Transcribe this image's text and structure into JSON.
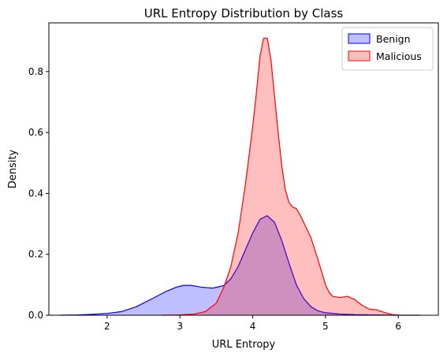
{
  "chart_data": {
    "type": "area",
    "title": "URL Entropy Distribution by Class",
    "xlabel": "URL Entropy",
    "ylabel": "Density",
    "xlim": [
      1.2,
      6.55
    ],
    "ylim": [
      0,
      0.96
    ],
    "x_ticks": [
      2,
      3,
      4,
      5,
      6
    ],
    "y_ticks": [
      0.0,
      0.2,
      0.4,
      0.6,
      0.8
    ],
    "grid": false,
    "legend_position": "top-right",
    "series": [
      {
        "name": "Benign",
        "line_color": "#0000ff",
        "fill_color": "#0000ff",
        "fill_opacity": 0.25,
        "x": [
          1.35,
          1.6,
          1.8,
          2.0,
          2.2,
          2.4,
          2.6,
          2.8,
          2.95,
          3.05,
          3.15,
          3.3,
          3.45,
          3.6,
          3.7,
          3.8,
          3.9,
          4.0,
          4.1,
          4.2,
          4.3,
          4.4,
          4.5,
          4.6,
          4.7,
          4.8,
          4.9,
          5.0,
          5.2,
          5.4,
          5.7,
          6.0,
          6.3
        ],
        "y": [
          0.0,
          0.001,
          0.003,
          0.006,
          0.012,
          0.028,
          0.052,
          0.077,
          0.092,
          0.098,
          0.098,
          0.092,
          0.089,
          0.097,
          0.12,
          0.16,
          0.215,
          0.27,
          0.315,
          0.327,
          0.305,
          0.245,
          0.17,
          0.1,
          0.055,
          0.028,
          0.014,
          0.008,
          0.004,
          0.002,
          0.001,
          0.0,
          0.0
        ]
      },
      {
        "name": "Malicious",
        "line_color": "#ff0000",
        "fill_color": "#ff0000",
        "fill_opacity": 0.25,
        "x": [
          2.75,
          3.0,
          3.2,
          3.35,
          3.5,
          3.6,
          3.7,
          3.8,
          3.9,
          4.0,
          4.05,
          4.1,
          4.15,
          4.2,
          4.25,
          4.3,
          4.35,
          4.4,
          4.45,
          4.5,
          4.55,
          4.6,
          4.65,
          4.7,
          4.8,
          4.9,
          5.0,
          5.05,
          5.1,
          5.2,
          5.3,
          5.4,
          5.5,
          5.6,
          5.7,
          5.8,
          5.9,
          6.0
        ],
        "y": [
          0.0,
          0.001,
          0.004,
          0.012,
          0.04,
          0.09,
          0.16,
          0.27,
          0.43,
          0.62,
          0.73,
          0.85,
          0.91,
          0.91,
          0.84,
          0.72,
          0.6,
          0.49,
          0.41,
          0.37,
          0.355,
          0.35,
          0.33,
          0.305,
          0.255,
          0.18,
          0.1,
          0.075,
          0.062,
          0.058,
          0.062,
          0.052,
          0.033,
          0.02,
          0.018,
          0.01,
          0.003,
          0.0
        ]
      }
    ]
  }
}
